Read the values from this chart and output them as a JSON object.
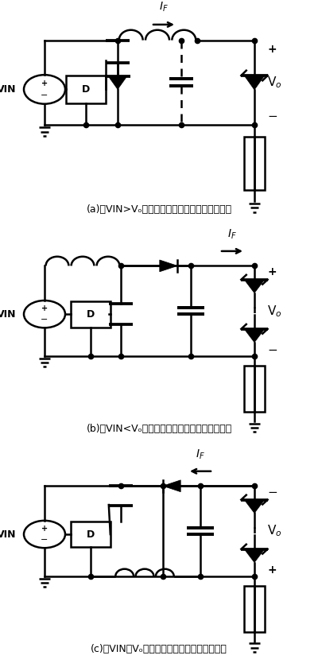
{
  "caption_a": "(a)当VIN>Vₒ时采用降压，输出电容器为可选件",
  "caption_b": "(b)当VIN<Vₒ时采用升压，输出电容器为必需件",
  "caption_c": "(c)当VIN和Vₒ重叠时采用降升压，有许多拓扑",
  "bg_color": "#ffffff",
  "line_color": "#000000",
  "lw": 1.8
}
